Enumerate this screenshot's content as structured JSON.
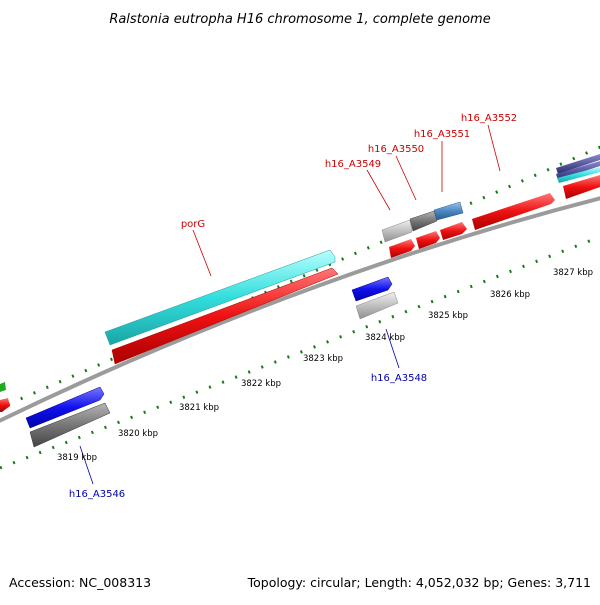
{
  "title": "Ralstonia eutropha H16 chromosome 1, complete genome",
  "footer": {
    "accession": "Accession: NC_008313",
    "summary": "Topology: circular; Length: 4,052,032 bp; Genes: 3,711"
  },
  "colors": {
    "backbone": "#a0a0a0",
    "tick_dots": "#1a7a1a",
    "label_red": "#cc0000",
    "label_blue": "#0000aa",
    "feature_red": "#ee1111",
    "feature_cyan": "#33dddd",
    "feature_blue": "#1111ee",
    "feature_gray": "#777777",
    "feature_lightgray": "#c0c0c0",
    "feature_steelblue": "#4b88c4"
  },
  "scale_labels": [
    "3819 kbp",
    "3820 kbp",
    "3821 kbp",
    "3822 kbp",
    "3823 kbp",
    "3824 kbp",
    "3825 kbp",
    "3826 kbp",
    "3827 kbp"
  ],
  "gene_labels": [
    {
      "text": "porG",
      "color": "red"
    },
    {
      "text": "h16_A3549",
      "color": "red"
    },
    {
      "text": "h16_A3550",
      "color": "red"
    },
    {
      "text": "h16_A3551",
      "color": "red"
    },
    {
      "text": "h16_A3552",
      "color": "red"
    },
    {
      "text": "h16_A3548",
      "color": "blue"
    },
    {
      "text": "h16_A3546",
      "color": "blue"
    }
  ]
}
